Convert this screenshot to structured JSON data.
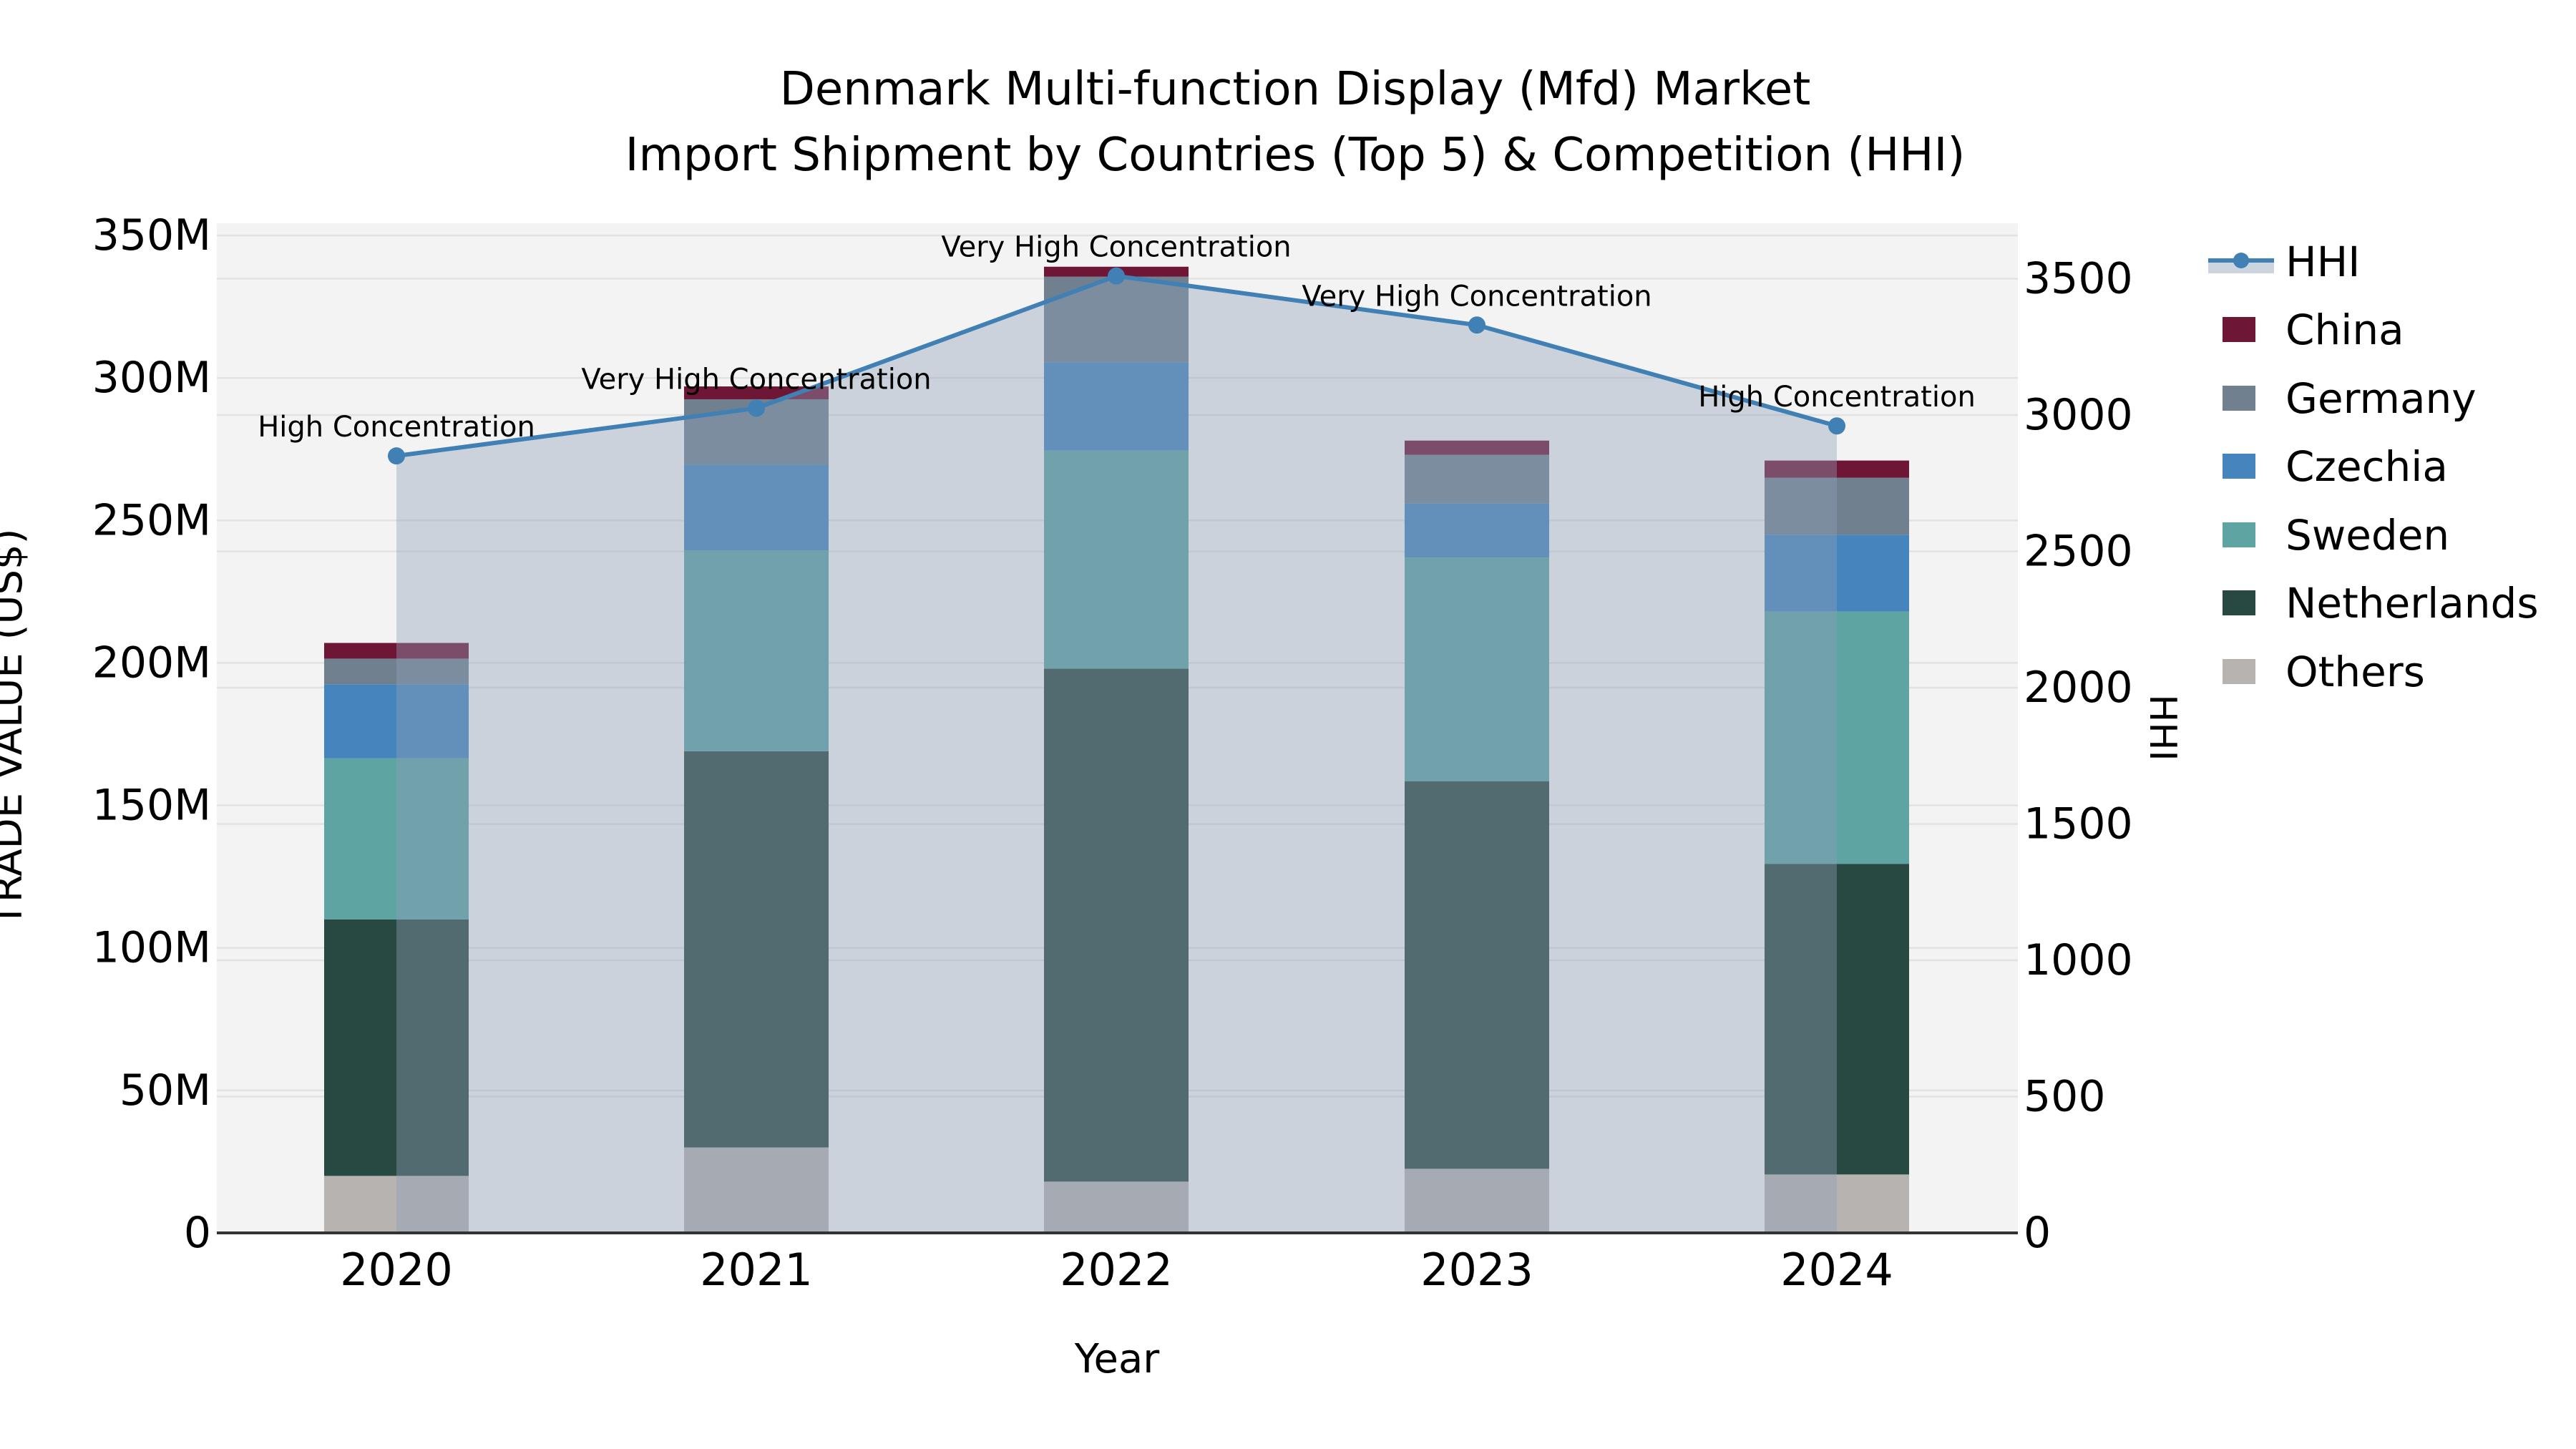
{
  "chart_data": {
    "type": "combo-stacked-bar-line",
    "title_line1": "Denmark Multi-function Display (Mfd) Market",
    "title_line2": "Import Shipment by Countries (Top 5) & Competition (HHI)",
    "xlabel": "Year",
    "ylabel_left": "TRADE VALUE (US$)",
    "ylabel_right": "HHI",
    "categories": [
      "2020",
      "2021",
      "2022",
      "2023",
      "2024"
    ],
    "bar_value_unit": "million US$",
    "series": [
      {
        "name": "Others",
        "color": "#b6b3b0",
        "values": [
          20,
          30,
          18,
          22.5,
          20.5
        ]
      },
      {
        "name": "Netherlands",
        "color": "#284842",
        "values": [
          90,
          139,
          180,
          136,
          109
        ]
      },
      {
        "name": "Sweden",
        "color": "#5ea4a2",
        "values": [
          56.5,
          70.5,
          76.5,
          78.5,
          88.5
        ]
      },
      {
        "name": "Czechia",
        "color": "#4684bd",
        "values": [
          26,
          30,
          31,
          19,
          27
        ]
      },
      {
        "name": "Germany",
        "color": "#71808f",
        "values": [
          9,
          23,
          30,
          17,
          20
        ]
      },
      {
        "name": "China",
        "color": "#6e1636",
        "values": [
          5.5,
          4.5,
          3.5,
          5,
          6
        ]
      }
    ],
    "bar_totals": [
      207,
      297,
      339,
      278,
      271
    ],
    "line_series": {
      "name": "HHI",
      "color": "#4080b5",
      "area_color": "#8fa0b8",
      "values": [
        2850,
        3025,
        3510,
        3330,
        2960
      ]
    },
    "annotations": [
      "High Concentration",
      "Very High Concentration",
      "Very High Concentration",
      "Very High Concentration",
      "High Concentration"
    ],
    "y_left": {
      "min": 0,
      "max": 354,
      "tick_step": 50,
      "ticks": [
        "0",
        "50M",
        "100M",
        "150M",
        "200M",
        "250M",
        "300M",
        "350M"
      ]
    },
    "y_right": {
      "min": 0,
      "max": 3700,
      "tick_step": 500,
      "ticks": [
        "0",
        "500",
        "1000",
        "1500",
        "2000",
        "2500",
        "3000",
        "3500"
      ]
    },
    "legend": [
      "HHI",
      "China",
      "Germany",
      "Czechia",
      "Sweden",
      "Netherlands",
      "Others"
    ],
    "grid": true,
    "legend_position": "right",
    "plot_bg_color": "#f3f3f3",
    "gridline_color": "#e2e2e2",
    "axis_line_color": "#333333"
  }
}
